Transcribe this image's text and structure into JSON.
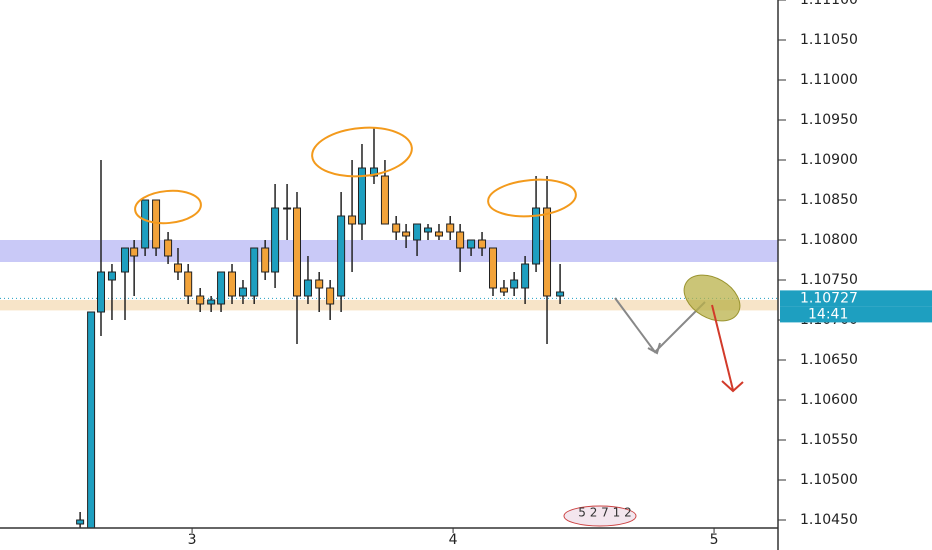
{
  "chart_data": {
    "type": "candlestick",
    "x": [
      2.571,
      2.613,
      2.651,
      2.693,
      2.743,
      2.778,
      2.82,
      2.862,
      2.908,
      2.946,
      2.985,
      3.031,
      3.073,
      3.111,
      3.153,
      3.195,
      3.238,
      3.28,
      3.318,
      3.364,
      3.402,
      3.444,
      3.487,
      3.529,
      3.571,
      3.613,
      3.651,
      3.697,
      3.739,
      3.782,
      3.82,
      3.862,
      3.904,
      3.946,
      3.989,
      4.027,
      4.069,
      4.111,
      4.153,
      4.195,
      4.234,
      4.276,
      4.318,
      4.36,
      4.41
    ],
    "open": [
      1.10445,
      1.1044,
      1.1071,
      1.1075,
      1.1076,
      1.1079,
      1.1079,
      1.1085,
      1.108,
      1.1077,
      1.1076,
      1.1073,
      1.1072,
      1.1072,
      1.1076,
      1.1073,
      1.1073,
      1.1079,
      1.1076,
      1.1084,
      1.1084,
      1.1073,
      1.1075,
      1.1074,
      1.1073,
      1.1083,
      1.1082,
      1.1088,
      1.1088,
      1.1082,
      1.1081,
      1.108,
      1.1081,
      1.1081,
      1.1082,
      1.1081,
      1.1079,
      1.108,
      1.1079,
      1.1074,
      1.1074,
      1.1074,
      1.1077,
      1.1084,
      1.1073
    ],
    "high": [
      1.1046,
      1.1071,
      1.109,
      1.1077,
      1.1079,
      1.108,
      1.1085,
      1.1085,
      1.1081,
      1.1079,
      1.1077,
      1.1074,
      1.1073,
      1.1076,
      1.1077,
      1.1075,
      1.1079,
      1.108,
      1.1087,
      1.1087,
      1.1086,
      1.1078,
      1.1076,
      1.1075,
      1.1086,
      1.109,
      1.1092,
      1.1094,
      1.109,
      1.1083,
      1.1082,
      1.1082,
      1.1082,
      1.1082,
      1.1083,
      1.1082,
      1.108,
      1.1081,
      1.1079,
      1.1075,
      1.1076,
      1.1078,
      1.1088,
      1.1088,
      1.1077
    ],
    "low": [
      1.1044,
      1.1044,
      1.1068,
      1.107,
      1.107,
      1.1073,
      1.1078,
      1.1078,
      1.1077,
      1.1075,
      1.1072,
      1.1071,
      1.1071,
      1.1071,
      1.1072,
      1.1072,
      1.1072,
      1.1075,
      1.1074,
      1.108,
      1.1067,
      1.1072,
      1.1071,
      1.107,
      1.1071,
      1.1076,
      1.108,
      1.1087,
      1.1082,
      1.108,
      1.1079,
      1.1078,
      1.108,
      1.108,
      1.108,
      1.1076,
      1.1078,
      1.1078,
      1.1073,
      1.1073,
      1.1073,
      1.1072,
      1.1076,
      1.1067,
      1.1072
    ],
    "close": [
      1.1045,
      1.1071,
      1.1076,
      1.1076,
      1.1079,
      1.1078,
      1.1085,
      1.1079,
      1.1078,
      1.1076,
      1.1073,
      1.1072,
      1.10725,
      1.1076,
      1.1073,
      1.1074,
      1.1079,
      1.1076,
      1.1084,
      1.1084,
      1.1073,
      1.1075,
      1.1074,
      1.1072,
      1.1083,
      1.1082,
      1.1089,
      1.1089,
      1.1082,
      1.1081,
      1.10805,
      1.1082,
      1.10815,
      1.10805,
      1.1081,
      1.1079,
      1.108,
      1.1079,
      1.1074,
      1.10735,
      1.1075,
      1.1077,
      1.1084,
      1.1073,
      1.10735
    ],
    "up_color": "#1e9fc0",
    "down_color": "#f2a33a",
    "xlim": [
      2.264,
      5.245
    ],
    "xticks": [
      3,
      4,
      5
    ],
    "ylim": [
      1.1044,
      1.111
    ],
    "yticks": [
      {
        "value": 1.1045,
        "label": "1.10450"
      },
      {
        "value": 1.105,
        "label": "1.10500"
      },
      {
        "value": 1.1055,
        "label": "1.10550"
      },
      {
        "value": 1.106,
        "label": "1.10600"
      },
      {
        "value": 1.1065,
        "label": "1.10650"
      },
      {
        "value": 1.107,
        "label": "1.10700"
      },
      {
        "value": 1.1075,
        "label": "1.10750"
      },
      {
        "value": 1.108,
        "label": "1.10800"
      },
      {
        "value": 1.1085,
        "label": "1.10850"
      },
      {
        "value": 1.109,
        "label": "1.10900"
      },
      {
        "value": 1.1095,
        "label": "1.10950"
      },
      {
        "value": 1.11,
        "label": "1.11000"
      },
      {
        "value": 1.1105,
        "label": "1.11050"
      },
      {
        "value": 1.111,
        "label": "1.11100"
      }
    ],
    "zones": [
      {
        "from": 1.107725,
        "to": 1.108,
        "color": "#c9c9f7"
      },
      {
        "from": 1.10712,
        "to": 1.10725,
        "color": "#f7e4c8"
      }
    ],
    "last_price": {
      "value": 1.10727,
      "label": "1.10727"
    },
    "countdown": "14:41",
    "watermark": "5 2 7 1 2"
  }
}
